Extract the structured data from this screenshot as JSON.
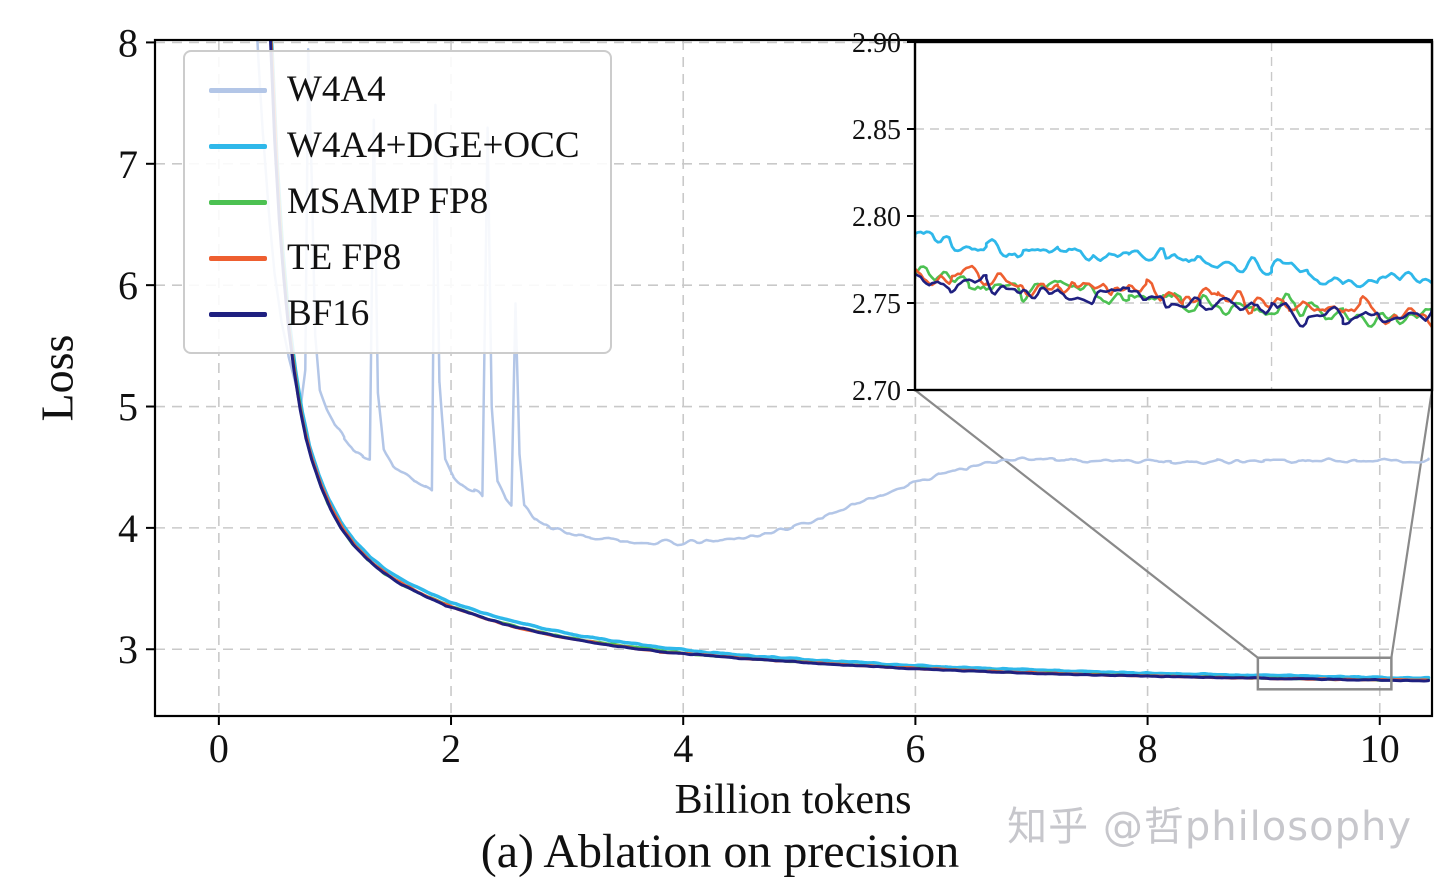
{
  "figure": {
    "caption": "(a) Ablation on precision",
    "watermark": "知乎 @哲philosophy"
  },
  "chart_data": {
    "type": "line",
    "title": "",
    "xlabel": "Billion tokens",
    "ylabel": "Loss",
    "xlim": [
      -0.55,
      10.45
    ],
    "ylim": [
      2.45,
      8.02
    ],
    "xticks": [
      0,
      2,
      4,
      6,
      8,
      10
    ],
    "yticks": [
      3,
      4,
      5,
      6,
      7,
      8
    ],
    "grid": true,
    "legend": {
      "position": "upper-left"
    },
    "colors": {
      "grid": "#c9c9c9",
      "axis": "#000000",
      "zoom_box": "#8a8a8a"
    },
    "series": [
      {
        "name": "W4A4",
        "color": "#b3c6e7",
        "width": 2.5,
        "noise": 0.013,
        "points": [
          [
            0.3,
            8.6
          ],
          [
            0.34,
            7.9
          ],
          [
            0.38,
            7.25
          ],
          [
            0.43,
            6.6
          ],
          [
            0.48,
            6.1
          ],
          [
            0.54,
            5.7
          ],
          [
            0.6,
            5.42
          ],
          [
            0.66,
            5.2
          ],
          [
            0.71,
            5.05
          ],
          [
            0.745,
            5.3
          ],
          [
            0.77,
            7.95
          ],
          [
            0.8,
            6.9
          ],
          [
            0.83,
            5.6
          ],
          [
            0.87,
            5.15
          ],
          [
            0.93,
            4.98
          ],
          [
            1.0,
            4.86
          ],
          [
            1.08,
            4.74
          ],
          [
            1.16,
            4.65
          ],
          [
            1.24,
            4.58
          ],
          [
            1.3,
            4.55
          ],
          [
            1.335,
            7.35
          ],
          [
            1.37,
            5.1
          ],
          [
            1.42,
            4.65
          ],
          [
            1.5,
            4.52
          ],
          [
            1.58,
            4.45
          ],
          [
            1.68,
            4.4
          ],
          [
            1.78,
            4.34
          ],
          [
            1.835,
            4.3
          ],
          [
            1.865,
            7.5
          ],
          [
            1.9,
            5.2
          ],
          [
            1.95,
            4.55
          ],
          [
            2.02,
            4.42
          ],
          [
            2.1,
            4.36
          ],
          [
            2.2,
            4.3
          ],
          [
            2.27,
            4.26
          ],
          [
            2.315,
            7.3
          ],
          [
            2.35,
            5.0
          ],
          [
            2.4,
            4.38
          ],
          [
            2.47,
            4.24
          ],
          [
            2.52,
            4.18
          ],
          [
            2.555,
            5.85
          ],
          [
            2.59,
            4.6
          ],
          [
            2.63,
            4.18
          ],
          [
            2.72,
            4.08
          ],
          [
            2.85,
            4.0
          ],
          [
            3.0,
            3.96
          ],
          [
            3.2,
            3.92
          ],
          [
            3.45,
            3.895
          ],
          [
            3.7,
            3.88
          ],
          [
            3.95,
            3.875
          ],
          [
            4.2,
            3.885
          ],
          [
            4.45,
            3.91
          ],
          [
            4.7,
            3.95
          ],
          [
            4.95,
            4.01
          ],
          [
            5.2,
            4.09
          ],
          [
            5.45,
            4.18
          ],
          [
            5.7,
            4.27
          ],
          [
            5.95,
            4.36
          ],
          [
            6.2,
            4.44
          ],
          [
            6.45,
            4.5
          ],
          [
            6.7,
            4.545
          ],
          [
            6.95,
            4.565
          ],
          [
            7.2,
            4.565
          ],
          [
            7.5,
            4.555
          ],
          [
            7.8,
            4.55
          ],
          [
            8.2,
            4.545
          ],
          [
            8.6,
            4.55
          ],
          [
            9.0,
            4.555
          ],
          [
            9.4,
            4.55
          ],
          [
            9.8,
            4.555
          ],
          [
            10.1,
            4.555
          ],
          [
            10.42,
            4.55
          ]
        ]
      },
      {
        "name": "W4A4+DGE+OCC",
        "color": "#2fb8ea",
        "width": 3.5,
        "noise": 0.004,
        "points": [
          [
            0.42,
            8.6
          ],
          [
            0.46,
            7.9
          ],
          [
            0.5,
            7.05
          ],
          [
            0.55,
            6.3
          ],
          [
            0.6,
            5.75
          ],
          [
            0.66,
            5.3
          ],
          [
            0.72,
            4.95
          ],
          [
            0.78,
            4.68
          ],
          [
            0.86,
            4.44
          ],
          [
            0.95,
            4.23
          ],
          [
            1.05,
            4.05
          ],
          [
            1.16,
            3.9
          ],
          [
            1.3,
            3.76
          ],
          [
            1.46,
            3.64
          ],
          [
            1.64,
            3.54
          ],
          [
            1.84,
            3.45
          ],
          [
            2.05,
            3.37
          ],
          [
            2.35,
            3.28
          ],
          [
            2.65,
            3.2
          ],
          [
            3.05,
            3.12
          ],
          [
            3.45,
            3.06
          ],
          [
            3.85,
            3.01
          ],
          [
            4.25,
            2.97
          ],
          [
            4.75,
            2.935
          ],
          [
            5.25,
            2.905
          ],
          [
            5.75,
            2.878
          ],
          [
            6.25,
            2.856
          ],
          [
            6.75,
            2.838
          ],
          [
            7.25,
            2.822
          ],
          [
            7.75,
            2.808
          ],
          [
            8.25,
            2.797
          ],
          [
            8.75,
            2.788
          ],
          [
            9.25,
            2.78
          ],
          [
            9.75,
            2.771
          ],
          [
            10.15,
            2.765
          ],
          [
            10.42,
            2.762
          ]
        ]
      },
      {
        "name": "MSAMP FP8",
        "color": "#4cc152",
        "width": 3,
        "noise": 0.003,
        "points": [
          [
            0.42,
            8.6
          ],
          [
            0.46,
            7.85
          ],
          [
            0.5,
            7.0
          ],
          [
            0.55,
            6.25
          ],
          [
            0.6,
            5.7
          ],
          [
            0.66,
            5.25
          ],
          [
            0.72,
            4.9
          ],
          [
            0.78,
            4.64
          ],
          [
            0.85,
            4.42
          ],
          [
            0.94,
            4.2
          ],
          [
            1.04,
            4.02
          ],
          [
            1.15,
            3.87
          ],
          [
            1.28,
            3.74
          ],
          [
            1.43,
            3.62
          ],
          [
            1.6,
            3.52
          ],
          [
            1.78,
            3.44
          ],
          [
            1.98,
            3.36
          ],
          [
            2.28,
            3.26
          ],
          [
            2.58,
            3.18
          ],
          [
            2.98,
            3.1
          ],
          [
            3.38,
            3.04
          ],
          [
            3.78,
            2.99
          ],
          [
            4.18,
            2.95
          ],
          [
            4.68,
            2.915
          ],
          [
            5.18,
            2.885
          ],
          [
            5.68,
            2.858
          ],
          [
            6.18,
            2.836
          ],
          [
            6.68,
            2.817
          ],
          [
            7.18,
            2.801
          ],
          [
            7.68,
            2.788
          ],
          [
            8.18,
            2.777
          ],
          [
            8.68,
            2.767
          ],
          [
            9.18,
            2.759
          ],
          [
            9.68,
            2.751
          ],
          [
            10.1,
            2.746
          ],
          [
            10.42,
            2.743
          ]
        ]
      },
      {
        "name": "TE FP8",
        "color": "#ee5f30",
        "width": 3,
        "noise": 0.003,
        "points": [
          [
            0.42,
            8.6
          ],
          [
            0.46,
            7.8
          ],
          [
            0.5,
            6.95
          ],
          [
            0.54,
            6.3
          ],
          [
            0.58,
            5.85
          ],
          [
            0.63,
            5.45
          ],
          [
            0.68,
            5.1
          ],
          [
            0.74,
            4.8
          ],
          [
            0.8,
            4.58
          ],
          [
            0.88,
            4.36
          ],
          [
            0.97,
            4.16
          ],
          [
            1.07,
            3.99
          ],
          [
            1.18,
            3.85
          ],
          [
            1.31,
            3.72
          ],
          [
            1.46,
            3.61
          ],
          [
            1.62,
            3.52
          ],
          [
            1.8,
            3.43
          ],
          [
            2.0,
            3.35
          ],
          [
            2.3,
            3.25
          ],
          [
            2.6,
            3.17
          ],
          [
            3.0,
            3.09
          ],
          [
            3.4,
            3.03
          ],
          [
            3.8,
            2.98
          ],
          [
            4.2,
            2.95
          ],
          [
            4.7,
            2.912
          ],
          [
            5.2,
            2.884
          ],
          [
            5.7,
            2.856
          ],
          [
            6.2,
            2.834
          ],
          [
            6.7,
            2.815
          ],
          [
            7.2,
            2.8
          ],
          [
            7.7,
            2.787
          ],
          [
            8.2,
            2.776
          ],
          [
            8.7,
            2.766
          ],
          [
            9.2,
            2.758
          ],
          [
            9.7,
            2.751
          ],
          [
            10.1,
            2.747
          ],
          [
            10.42,
            2.744
          ]
        ]
      },
      {
        "name": "BF16",
        "color": "#1f2080",
        "width": 3,
        "noise": 0.003,
        "points": [
          [
            0.42,
            8.6
          ],
          [
            0.45,
            7.9
          ],
          [
            0.48,
            7.2
          ],
          [
            0.52,
            6.55
          ],
          [
            0.56,
            6.05
          ],
          [
            0.6,
            5.65
          ],
          [
            0.65,
            5.28
          ],
          [
            0.7,
            4.98
          ],
          [
            0.75,
            4.74
          ],
          [
            0.8,
            4.56
          ],
          [
            0.88,
            4.34
          ],
          [
            0.96,
            4.16
          ],
          [
            1.05,
            4.0
          ],
          [
            1.15,
            3.87
          ],
          [
            1.28,
            3.74
          ],
          [
            1.42,
            3.63
          ],
          [
            1.58,
            3.53
          ],
          [
            1.75,
            3.45
          ],
          [
            1.95,
            3.36
          ],
          [
            2.15,
            3.3
          ],
          [
            2.45,
            3.21
          ],
          [
            2.75,
            3.14
          ],
          [
            3.05,
            3.08
          ],
          [
            3.45,
            3.02
          ],
          [
            3.85,
            2.975
          ],
          [
            4.25,
            2.945
          ],
          [
            4.65,
            2.915
          ],
          [
            5.05,
            2.89
          ],
          [
            5.55,
            2.862
          ],
          [
            6.05,
            2.838
          ],
          [
            6.55,
            2.818
          ],
          [
            7.05,
            2.802
          ],
          [
            7.55,
            2.788
          ],
          [
            8.05,
            2.777
          ],
          [
            8.55,
            2.768
          ],
          [
            9.05,
            2.76
          ],
          [
            9.55,
            2.752
          ],
          [
            10.0,
            2.746
          ],
          [
            10.42,
            2.741
          ]
        ]
      }
    ],
    "zoom_rect": {
      "x0": 8.95,
      "x1": 10.1,
      "y0": 2.67,
      "y1": 2.93
    },
    "inset": {
      "xlim": [
        9.0,
        10.45
      ],
      "ylim": [
        2.7,
        2.9
      ],
      "yticks": [
        2.7,
        2.75,
        2.8,
        2.85,
        2.9
      ],
      "ygrid": [
        2.75,
        2.8,
        2.85
      ],
      "xgrid": [
        10
      ],
      "series": [
        {
          "name": "W4A4+DGE+OCC",
          "color": "#2fb8ea",
          "width": 2.8,
          "noise": 0.004,
          "points": [
            [
              9.0,
              2.79
            ],
            [
              9.1,
              2.786
            ],
            [
              9.2,
              2.783
            ],
            [
              9.3,
              2.781
            ],
            [
              9.4,
              2.78
            ],
            [
              9.5,
              2.778
            ],
            [
              9.6,
              2.776
            ],
            [
              9.7,
              2.778
            ],
            [
              9.8,
              2.774
            ],
            [
              9.9,
              2.772
            ],
            [
              10.0,
              2.77
            ],
            [
              10.1,
              2.766
            ],
            [
              10.2,
              2.764
            ],
            [
              10.3,
              2.763
            ],
            [
              10.45,
              2.762
            ]
          ]
        },
        {
          "name": "MSAMP FP8",
          "color": "#4cc152",
          "width": 2.6,
          "noise": 0.005,
          "points": [
            [
              9.0,
              2.766
            ],
            [
              9.15,
              2.761
            ],
            [
              9.3,
              2.758
            ],
            [
              9.45,
              2.757
            ],
            [
              9.6,
              2.753
            ],
            [
              9.75,
              2.75
            ],
            [
              9.9,
              2.748
            ],
            [
              10.05,
              2.747
            ],
            [
              10.2,
              2.742
            ],
            [
              10.35,
              2.741
            ],
            [
              10.45,
              2.742
            ]
          ]
        },
        {
          "name": "TE FP8",
          "color": "#ee5f30",
          "width": 2.6,
          "noise": 0.005,
          "points": [
            [
              9.0,
              2.768
            ],
            [
              9.1,
              2.764
            ],
            [
              9.2,
              2.766
            ],
            [
              9.3,
              2.76
            ],
            [
              9.4,
              2.758
            ],
            [
              9.45,
              2.762
            ],
            [
              9.55,
              2.756
            ],
            [
              9.65,
              2.758
            ],
            [
              9.75,
              2.752
            ],
            [
              9.85,
              2.755
            ],
            [
              9.95,
              2.75
            ],
            [
              10.05,
              2.752
            ],
            [
              10.15,
              2.746
            ],
            [
              10.25,
              2.744
            ],
            [
              10.35,
              2.742
            ],
            [
              10.45,
              2.743
            ]
          ]
        },
        {
          "name": "BF16",
          "color": "#1f2080",
          "width": 2.6,
          "noise": 0.004,
          "points": [
            [
              9.0,
              2.764
            ],
            [
              9.1,
              2.76
            ],
            [
              9.2,
              2.762
            ],
            [
              9.3,
              2.757
            ],
            [
              9.4,
              2.755
            ],
            [
              9.5,
              2.753
            ],
            [
              9.6,
              2.755
            ],
            [
              9.7,
              2.75
            ],
            [
              9.8,
              2.748
            ],
            [
              9.9,
              2.75
            ],
            [
              10.0,
              2.745
            ],
            [
              10.1,
              2.742
            ],
            [
              10.2,
              2.74
            ],
            [
              10.3,
              2.742
            ],
            [
              10.45,
              2.74
            ]
          ]
        }
      ]
    }
  }
}
